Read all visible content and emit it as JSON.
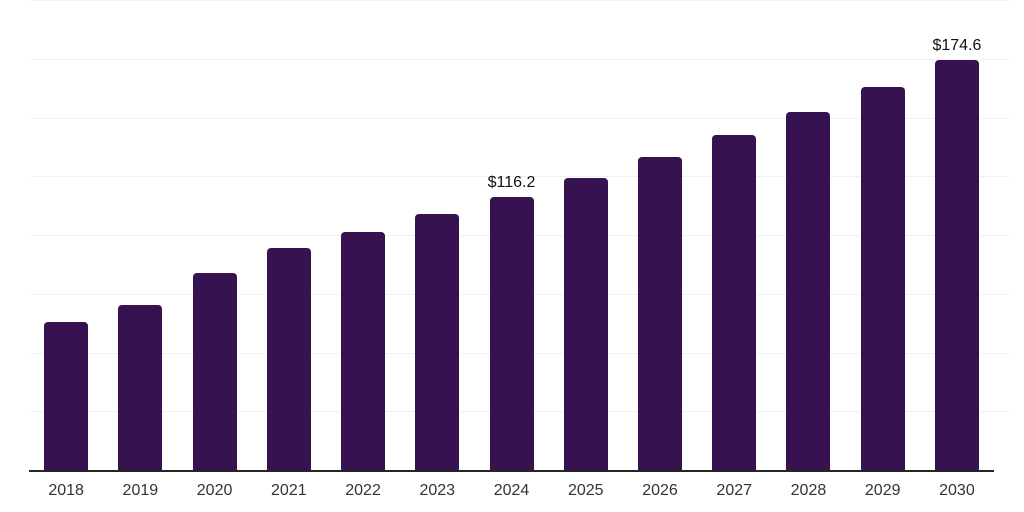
{
  "chart_data": {
    "type": "bar",
    "title": "",
    "xlabel": "",
    "ylabel": "",
    "categories": [
      "2018",
      "2019",
      "2020",
      "2021",
      "2022",
      "2023",
      "2024",
      "2025",
      "2026",
      "2027",
      "2028",
      "2029",
      "2030"
    ],
    "values": [
      63.0,
      70.1,
      84.0,
      94.4,
      101.2,
      108.9,
      116.2,
      124.4,
      133.1,
      142.5,
      152.5,
      163.0,
      174.6
    ],
    "annotations": [
      {
        "category": "2024",
        "text": "$116.2"
      },
      {
        "category": "2030",
        "text": "$174.6"
      }
    ],
    "ylim": [
      0,
      200
    ],
    "gridline_step": 25,
    "grid": true,
    "legend_position": "none",
    "colors": {
      "bar": "#361250",
      "gridline": "#f1f1f1",
      "axis_line": "#262626",
      "tick_label": "#333333",
      "value_label": "#111111",
      "background": "#ffffff"
    }
  }
}
